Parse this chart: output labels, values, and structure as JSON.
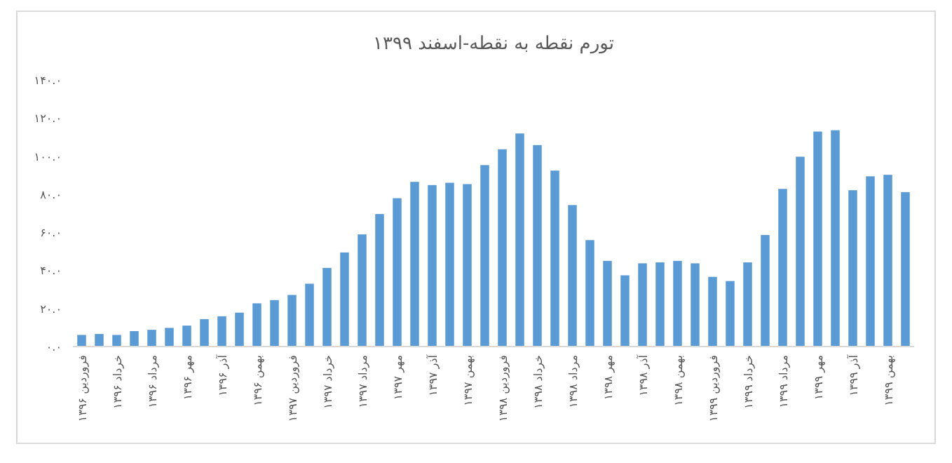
{
  "chart_data": {
    "type": "bar",
    "title": "تورم نقطه به نقطه-اسفند ۱۳۹۹",
    "color": "#5b9bd5",
    "categories": [
      "فروردین ۱۳۹۶",
      null,
      "خرداد ۱۳۹۶",
      null,
      "مرداد ۱۳۹۶",
      null,
      "مهر ۱۳۹۶",
      null,
      "آذر ۱۳۹۶",
      null,
      "بهمن ۱۳۹۶",
      null,
      "فروردین ۱۳۹۷",
      null,
      "خرداد ۱۳۹۷",
      null,
      "مرداد ۱۳۹۷",
      null,
      "مهر ۱۳۹۷",
      null,
      "آذر ۱۳۹۷",
      null,
      "بهمن ۱۳۹۷",
      null,
      "فروردین ۱۳۹۸",
      null,
      "خرداد ۱۳۹۸",
      null,
      "مرداد ۱۳۹۸",
      null,
      "مهر ۱۳۹۸",
      null,
      "آذر ۱۳۹۸",
      null,
      "بهمن ۱۳۹۸",
      null,
      "فروردین ۱۳۹۹",
      null,
      "خرداد ۱۳۹۹",
      null,
      "مرداد ۱۳۹۹",
      null,
      "مهر ۱۳۹۹",
      null,
      "آذر ۱۳۹۹",
      null,
      "بهمن ۱۳۹۹",
      null
    ],
    "values": [
      6.1,
      6.6,
      6.1,
      8.1,
      8.8,
      9.8,
      11.0,
      14.4,
      15.9,
      17.8,
      22.7,
      24.4,
      27.1,
      33.0,
      41.3,
      49.4,
      58.9,
      69.6,
      77.9,
      86.5,
      84.8,
      86.0,
      85.3,
      95.3,
      103.6,
      111.9,
      105.8,
      92.4,
      74.3,
      55.9,
      45.0,
      37.4,
      43.7,
      44.2,
      45.0,
      43.7,
      36.6,
      34.4,
      44.2,
      58.6,
      82.8,
      99.7,
      112.9,
      113.6,
      82.1,
      89.4,
      90.2,
      81.1
    ],
    "ylim": [
      0,
      140
    ],
    "yticks": [
      {
        "value": 0,
        "label": "۰.۰"
      },
      {
        "value": 20,
        "label": "۲۰.۰"
      },
      {
        "value": 40,
        "label": "۴۰.۰"
      },
      {
        "value": 60,
        "label": "۶۰.۰"
      },
      {
        "value": 80,
        "label": "۸۰.۰"
      },
      {
        "value": 100,
        "label": "۱۰۰.۰"
      },
      {
        "value": 120,
        "label": "۱۲۰.۰"
      },
      {
        "value": 140,
        "label": "۱۴۰.۰"
      }
    ],
    "grid": false
  }
}
